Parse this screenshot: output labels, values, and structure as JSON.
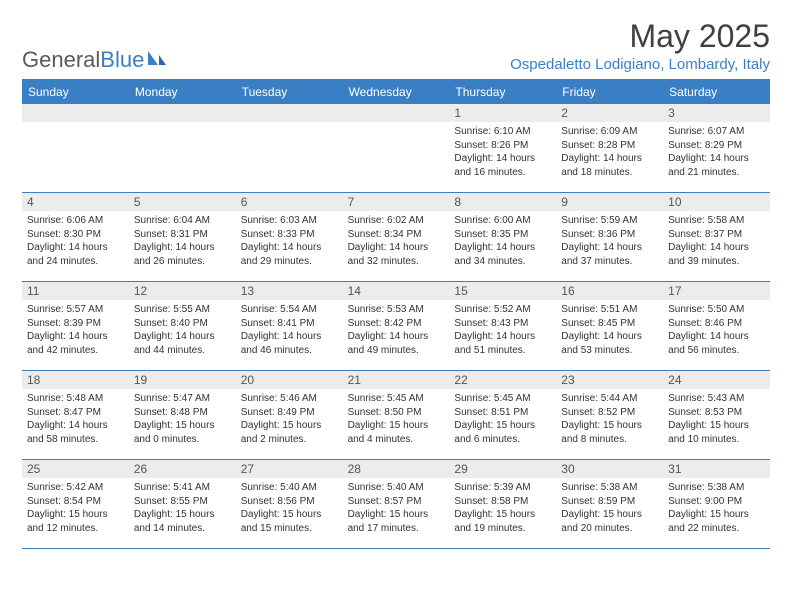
{
  "branding": {
    "logo_text_left": "General",
    "logo_text_right": "Blue",
    "logo_color_left": "#5a5a5a",
    "logo_color_right": "#3a7fc4"
  },
  "header": {
    "month_title": "May 2025",
    "location": "Ospedaletto Lodigiano, Lombardy, Italy"
  },
  "colors": {
    "accent": "#3a7fc4",
    "header_bg": "#3a7fc4",
    "header_text": "#ffffff",
    "daynum_bg": "#ececec",
    "body_text": "#333333",
    "rule": "#3a7fc4"
  },
  "weekdays": [
    "Sunday",
    "Monday",
    "Tuesday",
    "Wednesday",
    "Thursday",
    "Friday",
    "Saturday"
  ],
  "weeks": [
    [
      {
        "n": "",
        "sr": "",
        "ss": "",
        "dl": ""
      },
      {
        "n": "",
        "sr": "",
        "ss": "",
        "dl": ""
      },
      {
        "n": "",
        "sr": "",
        "ss": "",
        "dl": ""
      },
      {
        "n": "",
        "sr": "",
        "ss": "",
        "dl": ""
      },
      {
        "n": "1",
        "sr": "Sunrise: 6:10 AM",
        "ss": "Sunset: 8:26 PM",
        "dl": "Daylight: 14 hours and 16 minutes."
      },
      {
        "n": "2",
        "sr": "Sunrise: 6:09 AM",
        "ss": "Sunset: 8:28 PM",
        "dl": "Daylight: 14 hours and 18 minutes."
      },
      {
        "n": "3",
        "sr": "Sunrise: 6:07 AM",
        "ss": "Sunset: 8:29 PM",
        "dl": "Daylight: 14 hours and 21 minutes."
      }
    ],
    [
      {
        "n": "4",
        "sr": "Sunrise: 6:06 AM",
        "ss": "Sunset: 8:30 PM",
        "dl": "Daylight: 14 hours and 24 minutes."
      },
      {
        "n": "5",
        "sr": "Sunrise: 6:04 AM",
        "ss": "Sunset: 8:31 PM",
        "dl": "Daylight: 14 hours and 26 minutes."
      },
      {
        "n": "6",
        "sr": "Sunrise: 6:03 AM",
        "ss": "Sunset: 8:33 PM",
        "dl": "Daylight: 14 hours and 29 minutes."
      },
      {
        "n": "7",
        "sr": "Sunrise: 6:02 AM",
        "ss": "Sunset: 8:34 PM",
        "dl": "Daylight: 14 hours and 32 minutes."
      },
      {
        "n": "8",
        "sr": "Sunrise: 6:00 AM",
        "ss": "Sunset: 8:35 PM",
        "dl": "Daylight: 14 hours and 34 minutes."
      },
      {
        "n": "9",
        "sr": "Sunrise: 5:59 AM",
        "ss": "Sunset: 8:36 PM",
        "dl": "Daylight: 14 hours and 37 minutes."
      },
      {
        "n": "10",
        "sr": "Sunrise: 5:58 AM",
        "ss": "Sunset: 8:37 PM",
        "dl": "Daylight: 14 hours and 39 minutes."
      }
    ],
    [
      {
        "n": "11",
        "sr": "Sunrise: 5:57 AM",
        "ss": "Sunset: 8:39 PM",
        "dl": "Daylight: 14 hours and 42 minutes."
      },
      {
        "n": "12",
        "sr": "Sunrise: 5:55 AM",
        "ss": "Sunset: 8:40 PM",
        "dl": "Daylight: 14 hours and 44 minutes."
      },
      {
        "n": "13",
        "sr": "Sunrise: 5:54 AM",
        "ss": "Sunset: 8:41 PM",
        "dl": "Daylight: 14 hours and 46 minutes."
      },
      {
        "n": "14",
        "sr": "Sunrise: 5:53 AM",
        "ss": "Sunset: 8:42 PM",
        "dl": "Daylight: 14 hours and 49 minutes."
      },
      {
        "n": "15",
        "sr": "Sunrise: 5:52 AM",
        "ss": "Sunset: 8:43 PM",
        "dl": "Daylight: 14 hours and 51 minutes."
      },
      {
        "n": "16",
        "sr": "Sunrise: 5:51 AM",
        "ss": "Sunset: 8:45 PM",
        "dl": "Daylight: 14 hours and 53 minutes."
      },
      {
        "n": "17",
        "sr": "Sunrise: 5:50 AM",
        "ss": "Sunset: 8:46 PM",
        "dl": "Daylight: 14 hours and 56 minutes."
      }
    ],
    [
      {
        "n": "18",
        "sr": "Sunrise: 5:48 AM",
        "ss": "Sunset: 8:47 PM",
        "dl": "Daylight: 14 hours and 58 minutes."
      },
      {
        "n": "19",
        "sr": "Sunrise: 5:47 AM",
        "ss": "Sunset: 8:48 PM",
        "dl": "Daylight: 15 hours and 0 minutes."
      },
      {
        "n": "20",
        "sr": "Sunrise: 5:46 AM",
        "ss": "Sunset: 8:49 PM",
        "dl": "Daylight: 15 hours and 2 minutes."
      },
      {
        "n": "21",
        "sr": "Sunrise: 5:45 AM",
        "ss": "Sunset: 8:50 PM",
        "dl": "Daylight: 15 hours and 4 minutes."
      },
      {
        "n": "22",
        "sr": "Sunrise: 5:45 AM",
        "ss": "Sunset: 8:51 PM",
        "dl": "Daylight: 15 hours and 6 minutes."
      },
      {
        "n": "23",
        "sr": "Sunrise: 5:44 AM",
        "ss": "Sunset: 8:52 PM",
        "dl": "Daylight: 15 hours and 8 minutes."
      },
      {
        "n": "24",
        "sr": "Sunrise: 5:43 AM",
        "ss": "Sunset: 8:53 PM",
        "dl": "Daylight: 15 hours and 10 minutes."
      }
    ],
    [
      {
        "n": "25",
        "sr": "Sunrise: 5:42 AM",
        "ss": "Sunset: 8:54 PM",
        "dl": "Daylight: 15 hours and 12 minutes."
      },
      {
        "n": "26",
        "sr": "Sunrise: 5:41 AM",
        "ss": "Sunset: 8:55 PM",
        "dl": "Daylight: 15 hours and 14 minutes."
      },
      {
        "n": "27",
        "sr": "Sunrise: 5:40 AM",
        "ss": "Sunset: 8:56 PM",
        "dl": "Daylight: 15 hours and 15 minutes."
      },
      {
        "n": "28",
        "sr": "Sunrise: 5:40 AM",
        "ss": "Sunset: 8:57 PM",
        "dl": "Daylight: 15 hours and 17 minutes."
      },
      {
        "n": "29",
        "sr": "Sunrise: 5:39 AM",
        "ss": "Sunset: 8:58 PM",
        "dl": "Daylight: 15 hours and 19 minutes."
      },
      {
        "n": "30",
        "sr": "Sunrise: 5:38 AM",
        "ss": "Sunset: 8:59 PM",
        "dl": "Daylight: 15 hours and 20 minutes."
      },
      {
        "n": "31",
        "sr": "Sunrise: 5:38 AM",
        "ss": "Sunset: 9:00 PM",
        "dl": "Daylight: 15 hours and 22 minutes."
      }
    ]
  ]
}
